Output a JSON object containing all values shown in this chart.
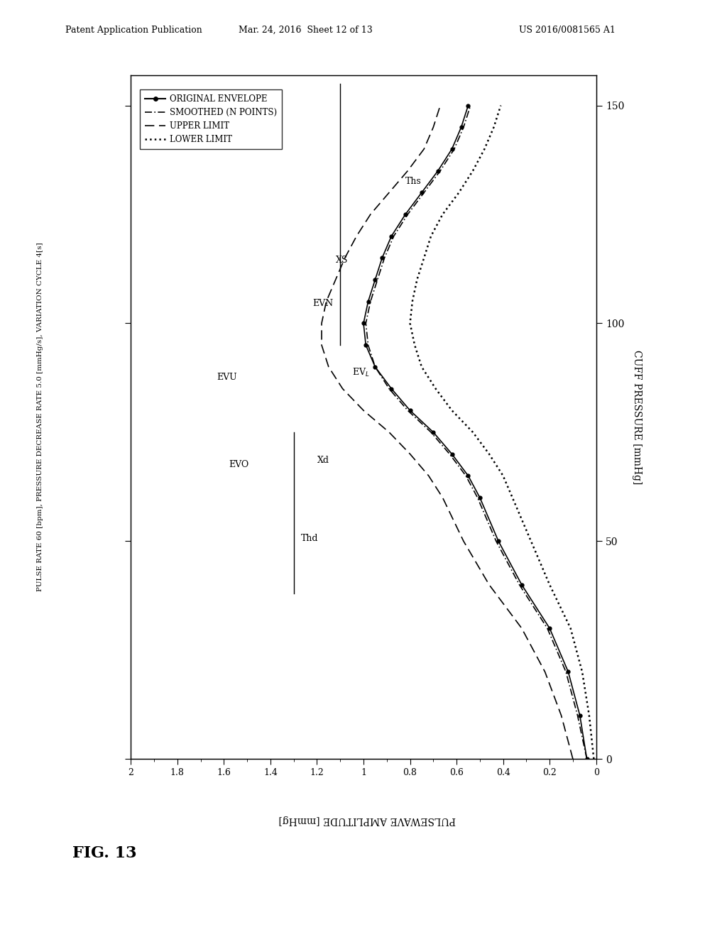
{
  "title_header": "Patent Application Publication",
  "title_date": "Mar. 24, 2016  Sheet 12 of 13",
  "title_patent": "US 2016/0081565 A1",
  "fig_label": "FIG. 13",
  "left_ylabel": "PULSE RATE 60 [bpm], PRESSURE DECREASE RATE 5.0 [mmHg/s], VARIATION CYCLE 4[s]",
  "right_ylabel": "CUFF PRESSURE [mmHg]",
  "bottom_xlabel": "PULSEWAVE AMPLITUDE [mmHg]",
  "x_ticks": [
    0,
    0.2,
    0.4,
    0.6,
    0.8,
    1.0,
    1.2,
    1.4,
    1.6,
    1.8,
    2.0
  ],
  "x_tick_labels": [
    "0",
    "0.2",
    "0.4",
    "0.6",
    "0.8",
    "1",
    "1.2",
    "1.4",
    "1.6",
    "1.8",
    "2"
  ],
  "y_ticks_right": [
    0,
    50,
    100,
    150
  ],
  "y_tick_labels_right": [
    "0",
    "50",
    "100",
    "150"
  ],
  "background_color": "#ffffff",
  "plot_bg": "#ffffff",
  "legend_entries": [
    "ORIGINAL ENVELOPE",
    "SMOOTHED (N POINTS)",
    "UPPER LIMIT",
    "LOWER LIMIT"
  ],
  "cuff_pressure": [
    0,
    10,
    20,
    30,
    40,
    50,
    60,
    65,
    70,
    75,
    80,
    85,
    90,
    95,
    100,
    105,
    110,
    115,
    120,
    125,
    130,
    135,
    140,
    145,
    150
  ],
  "orig_amp": [
    0.04,
    0.07,
    0.12,
    0.2,
    0.32,
    0.42,
    0.5,
    0.55,
    0.62,
    0.7,
    0.8,
    0.88,
    0.95,
    0.99,
    1.0,
    0.98,
    0.95,
    0.92,
    0.88,
    0.82,
    0.75,
    0.68,
    0.62,
    0.58,
    0.55
  ],
  "smooth_amp": [
    0.04,
    0.08,
    0.13,
    0.21,
    0.33,
    0.43,
    0.51,
    0.56,
    0.63,
    0.71,
    0.81,
    0.89,
    0.95,
    0.98,
    0.99,
    0.97,
    0.94,
    0.91,
    0.87,
    0.81,
    0.74,
    0.67,
    0.61,
    0.57,
    0.54
  ],
  "upper_amp": [
    0.1,
    0.15,
    0.22,
    0.32,
    0.46,
    0.57,
    0.66,
    0.72,
    0.8,
    0.89,
    1.0,
    1.09,
    1.15,
    1.18,
    1.18,
    1.16,
    1.12,
    1.08,
    1.03,
    0.97,
    0.89,
    0.81,
    0.74,
    0.7,
    0.67
  ],
  "lower_amp": [
    0.01,
    0.03,
    0.06,
    0.11,
    0.2,
    0.28,
    0.36,
    0.4,
    0.46,
    0.53,
    0.62,
    0.69,
    0.75,
    0.78,
    0.8,
    0.79,
    0.77,
    0.74,
    0.71,
    0.66,
    0.59,
    0.53,
    0.48,
    0.44,
    0.41
  ],
  "ths_x": 1.1,
  "thd_x": 1.3
}
